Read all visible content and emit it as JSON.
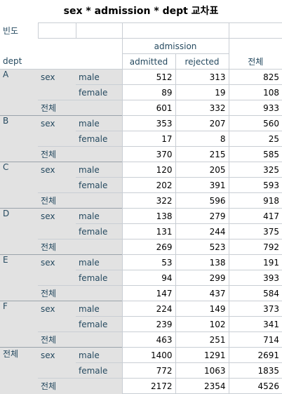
{
  "title": "sex * admission * dept 교차표",
  "corner_label": "빈도",
  "dept_header": "dept",
  "group_header": "admission",
  "col_headers": [
    "admitted",
    "rejected"
  ],
  "total_header": "전체",
  "var_label": "sex",
  "total_label": "전체",
  "sex_levels": [
    "male",
    "female"
  ],
  "depts": [
    {
      "name": "A",
      "rows": [
        [
          "512",
          "313",
          "825"
        ],
        [
          "89",
          "19",
          "108"
        ]
      ],
      "total": [
        "601",
        "332",
        "933"
      ]
    },
    {
      "name": "B",
      "rows": [
        [
          "353",
          "207",
          "560"
        ],
        [
          "17",
          "8",
          "25"
        ]
      ],
      "total": [
        "370",
        "215",
        "585"
      ]
    },
    {
      "name": "C",
      "rows": [
        [
          "120",
          "205",
          "325"
        ],
        [
          "202",
          "391",
          "593"
        ]
      ],
      "total": [
        "322",
        "596",
        "918"
      ]
    },
    {
      "name": "D",
      "rows": [
        [
          "138",
          "279",
          "417"
        ],
        [
          "131",
          "244",
          "375"
        ]
      ],
      "total": [
        "269",
        "523",
        "792"
      ]
    },
    {
      "name": "E",
      "rows": [
        [
          "53",
          "138",
          "191"
        ],
        [
          "94",
          "299",
          "393"
        ]
      ],
      "total": [
        "147",
        "437",
        "584"
      ]
    },
    {
      "name": "F",
      "rows": [
        [
          "224",
          "149",
          "373"
        ],
        [
          "239",
          "102",
          "341"
        ]
      ],
      "total": [
        "463",
        "251",
        "714"
      ]
    },
    {
      "name": "전체",
      "rows": [
        [
          "1400",
          "1291",
          "2691"
        ],
        [
          "772",
          "1063",
          "1835"
        ]
      ],
      "total": [
        "2172",
        "2354",
        "4526"
      ]
    }
  ]
}
